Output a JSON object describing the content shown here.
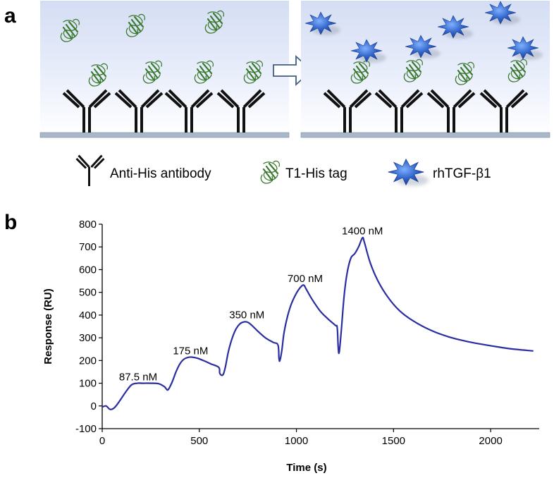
{
  "panel_a": {
    "letter": "a",
    "legend": [
      {
        "icon": "anti-his-antibody-icon",
        "label": "Anti-His antibody"
      },
      {
        "icon": "t1-his-tag-icon",
        "label": "T1-His tag"
      },
      {
        "icon": "rhtgf-b1-icon",
        "label": "rhTGF-β1"
      }
    ],
    "colors": {
      "protein": "#3a7a2e",
      "tgf": "#2f63c8",
      "antibody": "#111111",
      "surface": "#a9b8c9"
    }
  },
  "chart_data": {
    "type": "line",
    "panel_letter": "b",
    "xlabel": "Time (s)",
    "ylabel": "Response (RU)",
    "xlim": [
      0,
      2250
    ],
    "ylim": [
      -100,
      800
    ],
    "xticks": [
      0,
      500,
      1000,
      1500,
      2000
    ],
    "yticks": [
      -100,
      0,
      100,
      200,
      300,
      400,
      500,
      600,
      700,
      800
    ],
    "line_color": "#2b2ea1",
    "series": [
      {
        "x": [
          0,
          20,
          40,
          60,
          80,
          100,
          120,
          150,
          180,
          210,
          250,
          290,
          320,
          330,
          340,
          360,
          380,
          400,
          420,
          440,
          460,
          490,
          520,
          560,
          600,
          605,
          615,
          625,
          635,
          650,
          670,
          690,
          710,
          730,
          750,
          770,
          800,
          840,
          880,
          905,
          910,
          915,
          925,
          935,
          950,
          970,
          990,
          1010,
          1030,
          1040,
          1050,
          1080,
          1120,
          1160,
          1200,
          1210,
          1215,
          1220,
          1230,
          1245,
          1260,
          1280,
          1300,
          1320,
          1340,
          1350,
          1380,
          1420,
          1470,
          1530,
          1600,
          1700,
          1800,
          1900,
          2000,
          2100,
          2220
        ],
        "y": [
          -5,
          0,
          -15,
          -10,
          10,
          35,
          60,
          92,
          100,
          100,
          100,
          98,
          85,
          75,
          72,
          105,
          150,
          185,
          205,
          213,
          215,
          210,
          200,
          185,
          170,
          145,
          135,
          142,
          175,
          240,
          300,
          340,
          362,
          370,
          368,
          355,
          330,
          300,
          280,
          268,
          210,
          200,
          245,
          315,
          380,
          440,
          480,
          510,
          530,
          530,
          515,
          470,
          420,
          385,
          355,
          345,
          260,
          235,
          320,
          480,
          580,
          650,
          670,
          700,
          740,
          720,
          630,
          550,
          480,
          420,
          375,
          330,
          300,
          280,
          265,
          252,
          242
        ]
      }
    ],
    "annotations": [
      {
        "text": "87.5 nM",
        "x": 185,
        "y": 112
      },
      {
        "text": "175 nM",
        "x": 455,
        "y": 228
      },
      {
        "text": "350 nM",
        "x": 745,
        "y": 385
      },
      {
        "text": "700 nM",
        "x": 1045,
        "y": 545
      },
      {
        "text": "1400 nM",
        "x": 1340,
        "y": 755
      }
    ]
  }
}
